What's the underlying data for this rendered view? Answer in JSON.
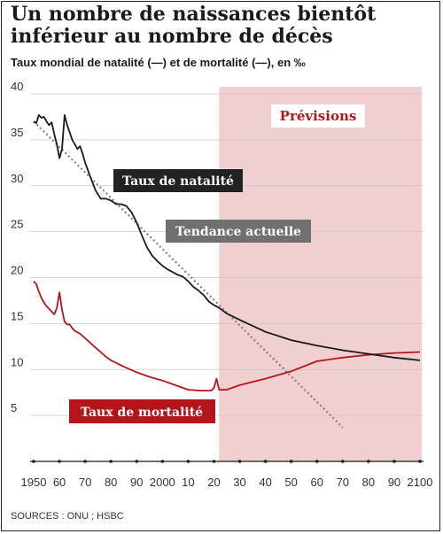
{
  "title": "Un nombre de naissances bientôt inférieur au nombre de décès",
  "subtitle": "Taux mondial de natalité (—) et de mortalité (—), en ‰",
  "sources": "SOURCES : ONU ; HSBC",
  "colors": {
    "birth": "#1a1a1a",
    "death": "#b4151c",
    "forecast_bg": "#f1cfd1",
    "trend": "#808080",
    "label_bg_dark": "#222222",
    "label_bg_gray": "#707070"
  },
  "chart_data": {
    "type": "line",
    "title": "Un nombre de naissances bientôt inférieur au nombre de décès",
    "subtitle": "Taux mondial de natalité (—) et de mortalité (—), en ‰",
    "xlim": [
      1950,
      2100
    ],
    "ylim": [
      0,
      40
    ],
    "y_ticks": [
      5,
      10,
      15,
      20,
      25,
      30,
      35,
      40
    ],
    "x_ticks": [
      1950,
      1960,
      1970,
      1980,
      1990,
      2000,
      2010,
      2020,
      2030,
      2040,
      2050,
      2060,
      2070,
      2080,
      2090,
      2100
    ],
    "x_tick_labels": [
      "1950",
      "60",
      "70",
      "80",
      "90",
      "2000",
      "10",
      "20",
      "30",
      "40",
      "50",
      "60",
      "70",
      "80",
      "90",
      "2100"
    ],
    "forecast_start": 2022,
    "forecast_label": "Prévisions",
    "series": [
      {
        "name": "Taux de natalité",
        "x": [
          1950,
          1951,
          1952,
          1953,
          1954,
          1955,
          1956,
          1957,
          1958,
          1959,
          1960,
          1961,
          1962,
          1963,
          1964,
          1965,
          1966,
          1967,
          1968,
          1969,
          1970,
          1972,
          1974,
          1976,
          1978,
          1980,
          1982,
          1984,
          1986,
          1988,
          1990,
          1992,
          1994,
          1996,
          1998,
          2000,
          2002,
          2004,
          2006,
          2008,
          2010,
          2012,
          2014,
          2016,
          2018,
          2020,
          2022,
          2025,
          2030,
          2040,
          2050,
          2060,
          2070,
          2080,
          2090,
          2100
        ],
        "y": [
          37.0,
          36.8,
          37.7,
          37.4,
          37.5,
          37.0,
          36.6,
          36.9,
          35.6,
          34.5,
          33.0,
          34.0,
          37.7,
          36.6,
          35.8,
          35.0,
          34.5,
          34.0,
          34.3,
          33.5,
          32.5,
          31.0,
          29.5,
          28.6,
          28.6,
          28.4,
          28.0,
          28.0,
          27.8,
          27.1,
          26.0,
          24.6,
          23.3,
          22.4,
          21.8,
          21.3,
          20.9,
          20.6,
          20.3,
          20.1,
          19.6,
          19.0,
          18.6,
          18.1,
          17.4,
          17.0,
          16.7,
          16.1,
          15.4,
          14.1,
          13.2,
          12.6,
          12.1,
          11.7,
          11.3,
          11.0
        ]
      },
      {
        "name": "Taux de mortalité",
        "x": [
          1950,
          1951,
          1952,
          1953,
          1954,
          1955,
          1956,
          1957,
          1958,
          1959,
          1960,
          1961,
          1962,
          1963,
          1964,
          1965,
          1966,
          1968,
          1970,
          1972,
          1974,
          1976,
          1978,
          1980,
          1985,
          1990,
          1995,
          2000,
          2005,
          2010,
          2015,
          2019,
          2020,
          2021,
          2022,
          2025,
          2030,
          2040,
          2050,
          2060,
          2070,
          2080,
          2090,
          2100
        ],
        "y": [
          19.6,
          19.3,
          18.5,
          17.8,
          17.3,
          16.9,
          16.6,
          16.3,
          16.0,
          16.7,
          18.4,
          16.5,
          15.2,
          14.9,
          14.9,
          14.5,
          14.2,
          13.9,
          13.4,
          12.9,
          12.4,
          11.9,
          11.4,
          11.0,
          10.3,
          9.7,
          9.2,
          8.8,
          8.3,
          7.8,
          7.7,
          7.7,
          8.0,
          9.0,
          7.8,
          7.8,
          8.3,
          9.0,
          9.8,
          10.9,
          11.3,
          11.6,
          11.8,
          11.9
        ]
      }
    ],
    "trend": {
      "name": "Tendance actuelle",
      "x": [
        1950,
        2070
      ],
      "y": [
        37.0,
        3.7
      ]
    },
    "labels": {
      "birth": "Taux de natalité",
      "trend": "Tendance actuelle",
      "death": "Taux de mortalité"
    }
  }
}
